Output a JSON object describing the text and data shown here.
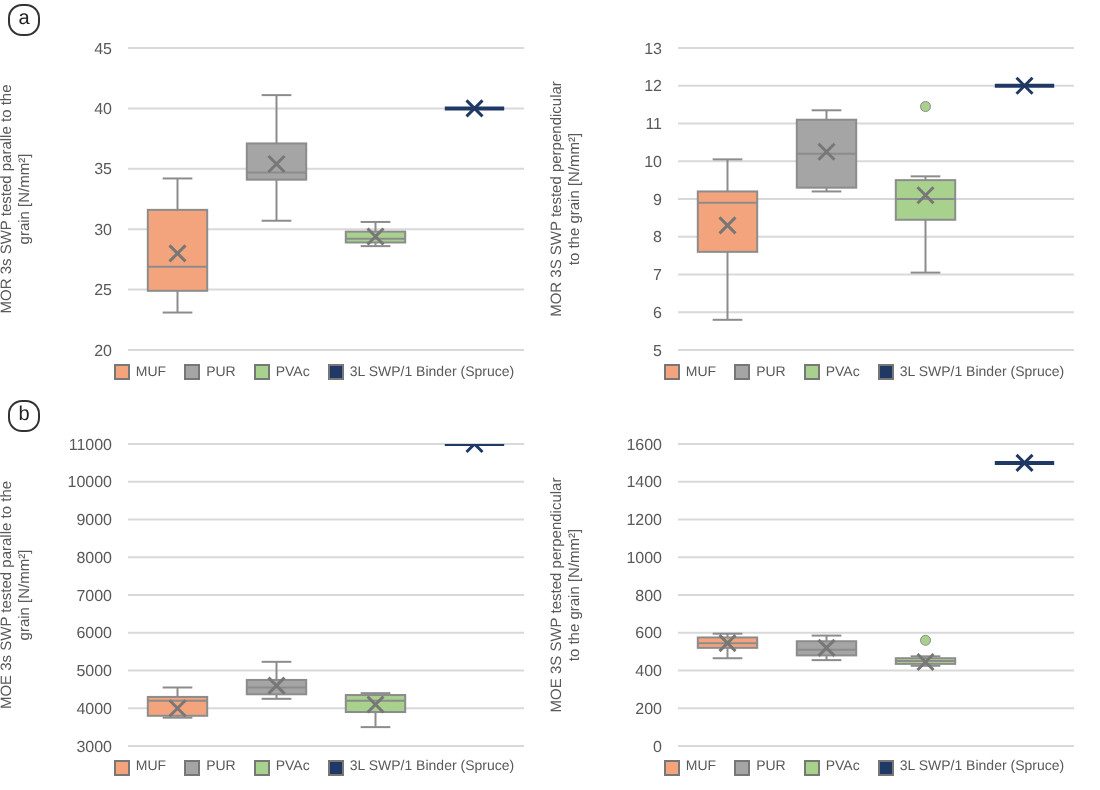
{
  "chart_data": [
    {
      "type": "box",
      "annotations": [
        "a"
      ],
      "ylabel": "MOR 3s SWP tested paralle to the grain [N/mm²]",
      "categories": [
        null,
        null,
        null,
        null
      ],
      "ylim": [
        20,
        45
      ],
      "yticks": [
        20,
        25,
        30,
        35,
        40,
        45
      ],
      "grid": "y",
      "legend": "bottom",
      "tick_labels": "y",
      "series": [
        {
          "name": "MUF",
          "color": "#f4a47c",
          "boxes": [
            {
              "low": 23.1,
              "q1": 24.9,
              "median": 26.9,
              "q3": 31.6,
              "high": 34.2,
              "mean": 28.0
            },
            null,
            null,
            null
          ]
        },
        {
          "name": "PUR",
          "color": "#a5a5a5",
          "boxes": [
            null,
            {
              "low": 30.7,
              "q1": 34.1,
              "median": 34.7,
              "q3": 37.1,
              "high": 41.1,
              "mean": 35.4
            },
            null,
            null
          ]
        },
        {
          "name": "PVAc",
          "color": "#a9d18e",
          "boxes": [
            null,
            null,
            {
              "low": 28.6,
              "q1": 28.9,
              "median": 29.2,
              "q3": 29.8,
              "high": 30.6,
              "mean": 29.4
            },
            null
          ]
        },
        {
          "name": "3L SWP/1 Binder (Spruce)",
          "color": "#1f3864",
          "boxes": [
            null,
            null,
            null,
            {
              "low": 40,
              "q1": 40,
              "median": 40,
              "q3": 40,
              "high": 40,
              "mean": 40
            }
          ]
        }
      ]
    },
    {
      "type": "box",
      "ylabel": "MOR 3S SWP tested perpendicular to the grain  [N/mm²]",
      "categories": [
        null,
        null,
        null,
        null
      ],
      "ylim": [
        5,
        13
      ],
      "yticks": [
        5,
        6,
        7,
        8,
        9,
        10,
        11,
        12,
        13
      ],
      "grid": "y",
      "legend": "bottom",
      "tick_labels": "y",
      "series": [
        {
          "name": "MUF",
          "color": "#f4a47c",
          "boxes": [
            {
              "low": 5.8,
              "q1": 7.6,
              "median": 8.9,
              "q3": 9.2,
              "high": 10.05,
              "mean": 8.3
            },
            null,
            null,
            null
          ]
        },
        {
          "name": "PUR",
          "color": "#a5a5a5",
          "boxes": [
            null,
            {
              "low": 9.2,
              "q1": 9.3,
              "median": 10.2,
              "q3": 11.1,
              "high": 11.35,
              "mean": 10.25
            },
            null,
            null
          ]
        },
        {
          "name": "PVAc",
          "color": "#a9d18e",
          "boxes": [
            null,
            null,
            {
              "low": 7.05,
              "q1": 8.45,
              "median": 9.0,
              "q3": 9.5,
              "high": 9.6,
              "mean": 9.1,
              "outliers": [
                11.45
              ]
            },
            null
          ]
        },
        {
          "name": "3L SWP/1 Binder (Spruce)",
          "color": "#1f3864",
          "boxes": [
            null,
            null,
            null,
            {
              "low": 12,
              "q1": 12,
              "median": 12,
              "q3": 12,
              "high": 12,
              "mean": 12
            }
          ]
        }
      ]
    },
    {
      "type": "box",
      "annotations": [
        "b"
      ],
      "ylabel": "MOE 3s SWP tested paralle to the grain [N/mm²]",
      "categories": [
        null,
        null,
        null,
        null
      ],
      "ylim": [
        3000,
        11000
      ],
      "yticks": [
        3000,
        4000,
        5000,
        6000,
        7000,
        8000,
        9000,
        10000,
        11000
      ],
      "grid": "y",
      "legend": "bottom",
      "tick_labels": "y",
      "series": [
        {
          "name": "MUF",
          "color": "#f4a47c",
          "boxes": [
            {
              "low": 3750,
              "q1": 3800,
              "median": 4200,
              "q3": 4300,
              "high": 4550,
              "mean": 4000
            },
            null,
            null,
            null
          ]
        },
        {
          "name": "PUR",
          "color": "#a5a5a5",
          "boxes": [
            null,
            {
              "low": 4250,
              "q1": 4370,
              "median": 4550,
              "q3": 4750,
              "high": 5230,
              "mean": 4600
            },
            null,
            null
          ]
        },
        {
          "name": "PVAc",
          "color": "#a9d18e",
          "boxes": [
            null,
            null,
            {
              "low": 3500,
              "q1": 3900,
              "median": 4200,
              "q3": 4350,
              "high": 4400,
              "mean": 4100
            },
            null
          ]
        },
        {
          "name": "3L SWP/1 Binder (Spruce)",
          "color": "#1f3864",
          "boxes": [
            null,
            null,
            null,
            {
              "low": 11000,
              "q1": 11000,
              "median": 11000,
              "q3": 11000,
              "high": 11000,
              "mean": 11000
            }
          ]
        }
      ]
    },
    {
      "type": "box",
      "ylabel": "MOE 3S SWP tested perpendicular to the grain [N/mm²]",
      "categories": [
        null,
        null,
        null,
        null
      ],
      "ylim": [
        0,
        1600
      ],
      "yticks": [
        0,
        200,
        400,
        600,
        800,
        1000,
        1200,
        1400,
        1600
      ],
      "grid": "y",
      "legend": "bottom",
      "tick_labels": "y",
      "series": [
        {
          "name": "MUF",
          "color": "#f4a47c",
          "boxes": [
            {
              "low": 465,
              "q1": 520,
              "median": 545,
              "q3": 575,
              "high": 595,
              "mean": 545
            },
            null,
            null,
            null
          ]
        },
        {
          "name": "PUR",
          "color": "#a5a5a5",
          "boxes": [
            null,
            {
              "low": 455,
              "q1": 480,
              "median": 510,
              "q3": 555,
              "high": 585,
              "mean": 520
            },
            null,
            null
          ]
        },
        {
          "name": "PVAc",
          "color": "#a9d18e",
          "boxes": [
            null,
            null,
            {
              "low": 425,
              "q1": 435,
              "median": 450,
              "q3": 465,
              "high": 475,
              "mean": 445,
              "outliers": [
                560
              ]
            },
            null
          ]
        },
        {
          "name": "3L SWP/1 Binder (Spruce)",
          "color": "#1f3864",
          "boxes": [
            null,
            null,
            null,
            {
              "low": 1500,
              "q1": 1500,
              "median": 1500,
              "q3": 1500,
              "high": 1500,
              "mean": 1500
            }
          ]
        }
      ]
    }
  ]
}
